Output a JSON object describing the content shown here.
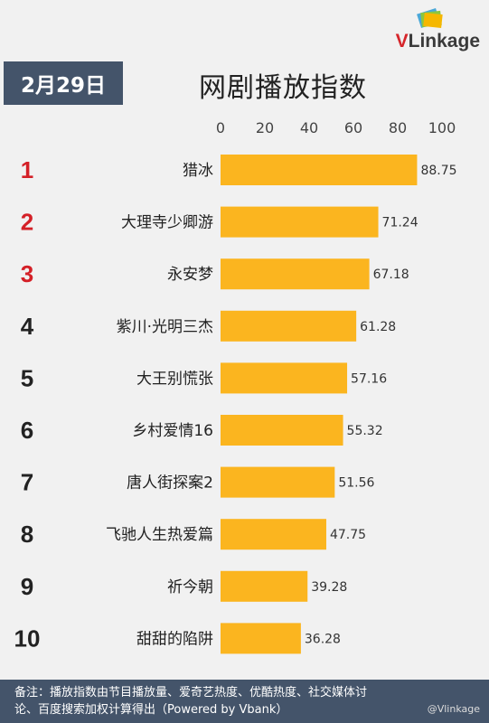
{
  "brand": {
    "logo_text_v": "V",
    "logo_text_rest": "Linkage"
  },
  "date_badge": "2月29日",
  "title": "网剧播放指数",
  "colors": {
    "bar": "#fbb51f",
    "rank_top3": "#d42027",
    "rank_other": "#222222",
    "panel": "#44546a"
  },
  "chart_data": {
    "type": "bar",
    "orientation": "horizontal",
    "title": "网剧播放指数",
    "xlim": [
      0,
      100
    ],
    "ticks": [
      0,
      20,
      40,
      60,
      80,
      100
    ],
    "grid": false,
    "categories": [
      "猎冰",
      "大理寺少卿游",
      "永安梦",
      "紫川·光明三杰",
      "大王别慌张",
      "乡村爱情16",
      "唐人街探案2",
      "飞驰人生热爱篇",
      "祈今朝",
      "甜甜的陷阱"
    ],
    "ranks": [
      "1",
      "2",
      "3",
      "4",
      "5",
      "6",
      "7",
      "8",
      "9",
      "10"
    ],
    "values": [
      88.75,
      71.24,
      67.18,
      61.28,
      57.16,
      55.32,
      51.56,
      47.75,
      39.28,
      36.28
    ],
    "value_labels": [
      "88.75",
      "71.24",
      "67.18",
      "61.28",
      "57.16",
      "55.32",
      "51.56",
      "47.75",
      "39.28",
      "36.28"
    ]
  },
  "note": {
    "line1": "备注：播放指数由节目播放量、爱奇艺热度、优酷热度、社交媒体讨",
    "line2": "论、百度搜索加权计算得出（Powered by Vbank）"
  },
  "watermark": "@Vlinkage"
}
